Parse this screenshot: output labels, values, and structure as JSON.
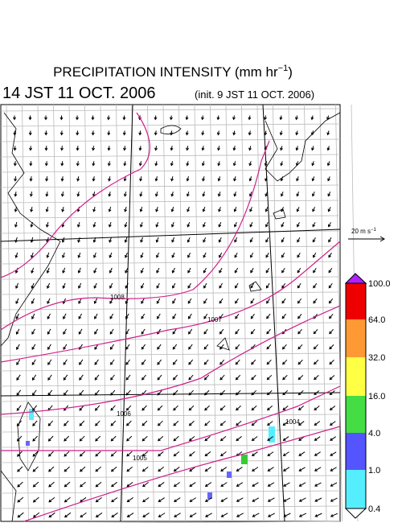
{
  "header": {
    "title": "PRECIPITATION INTENSITY (mm hr",
    "title_exp": "−1",
    "title_close": ")",
    "valid_time": "14 JST 11 OCT. 2006",
    "init_time": "(init. 9 JST 11 OCT. 2006)"
  },
  "wind_scale": {
    "label": "20 m s",
    "exp": "−1"
  },
  "colorbar": {
    "labels": [
      "100.0",
      "64.0",
      "32.0",
      "16.0",
      "4.0",
      "1.0",
      "0.4"
    ]
  },
  "contours": {
    "labels": [
      "1008",
      "1007",
      "1006",
      "1005",
      "1004"
    ]
  }
}
